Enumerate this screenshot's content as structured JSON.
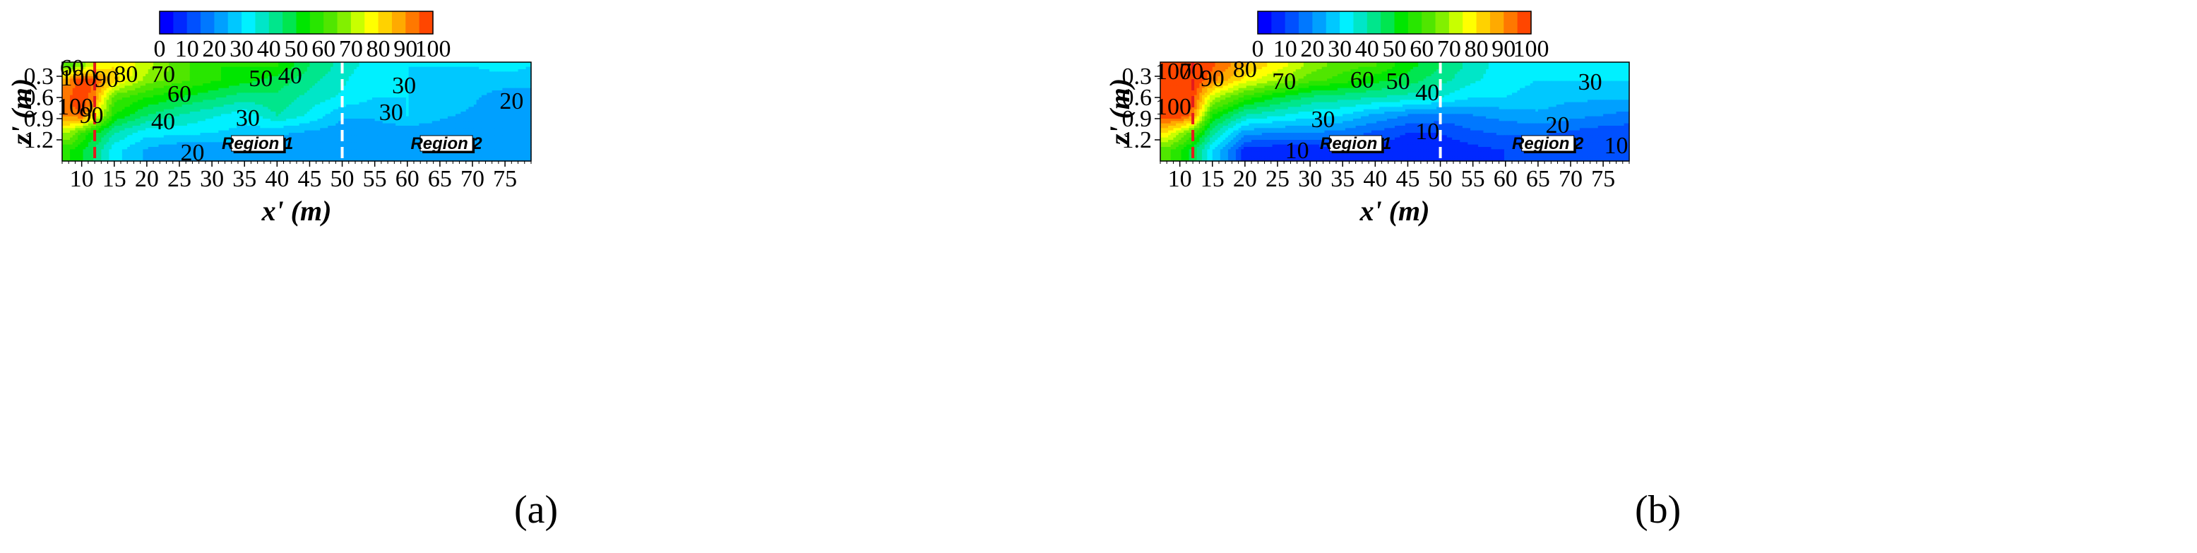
{
  "chart_data": [
    {
      "type": "heatmap",
      "panel_label": "(a)",
      "xlabel": "x' (m)",
      "ylabel": "z' (m)",
      "xlim": [
        7,
        79
      ],
      "ylim": [
        1.5,
        0.1
      ],
      "x_ticks": [
        "10",
        "15",
        "20",
        "25",
        "30",
        "35",
        "40",
        "45",
        "50",
        "55",
        "60",
        "65",
        "70",
        "75"
      ],
      "y_ticks": [
        "0.3",
        "0.6",
        "0.9",
        "1.2"
      ],
      "colorbar": {
        "range": [
          0,
          100
        ],
        "step": 5,
        "tick_labels": [
          "0",
          "10",
          "20",
          "30",
          "40",
          "50",
          "60",
          "70",
          "80",
          "90",
          "100"
        ]
      },
      "reference_lines": [
        {
          "x": 12,
          "color": "#e41a1c",
          "style": "dashed"
        },
        {
          "x": 50,
          "color": "#ffffff",
          "style": "dashed"
        }
      ],
      "regions": [
        {
          "label": "Region 1",
          "x": 37,
          "z": 1.25
        },
        {
          "label": "Region 2",
          "x": 66,
          "z": 1.25
        }
      ],
      "contour_labels": [
        {
          "text": "60",
          "x": 8.5,
          "z": 0.18
        },
        {
          "text": "100",
          "x": 9.5,
          "z": 0.32
        },
        {
          "text": "90",
          "x": 13.8,
          "z": 0.34
        },
        {
          "text": "80",
          "x": 16.8,
          "z": 0.27
        },
        {
          "text": "70",
          "x": 22.5,
          "z": 0.27
        },
        {
          "text": "60",
          "x": 25,
          "z": 0.55
        },
        {
          "text": "50",
          "x": 37.5,
          "z": 0.33
        },
        {
          "text": "40",
          "x": 42,
          "z": 0.29
        },
        {
          "text": "30",
          "x": 59.5,
          "z": 0.43
        },
        {
          "text": "100",
          "x": 9,
          "z": 0.73
        },
        {
          "text": "90",
          "x": 11.5,
          "z": 0.85
        },
        {
          "text": "40",
          "x": 22.5,
          "z": 0.94
        },
        {
          "text": "30",
          "x": 35.5,
          "z": 0.89
        },
        {
          "text": "30",
          "x": 57.5,
          "z": 0.81
        },
        {
          "text": "20",
          "x": 27,
          "z": 1.38
        },
        {
          "text": "20",
          "x": 76,
          "z": 0.65
        }
      ],
      "field_samples_z": [
        0.15,
        0.35,
        0.6,
        0.85,
        1.1,
        1.35
      ],
      "field_samples_x": [
        8,
        10,
        12,
        15,
        20,
        25,
        30,
        35,
        40,
        45,
        50,
        55,
        60,
        65,
        70,
        75,
        79
      ],
      "field_values": [
        [
          62,
          68,
          75,
          80,
          72,
          62,
          55,
          55,
          55,
          45,
          38,
          32,
          30,
          30,
          30,
          32,
          30
        ],
        [
          88,
          100,
          95,
          82,
          68,
          62,
          56,
          52,
          48,
          42,
          36,
          30,
          30,
          28,
          28,
          28,
          28
        ],
        [
          95,
          100,
          90,
          62,
          55,
          50,
          46,
          42,
          44,
          38,
          34,
          30,
          30,
          28,
          26,
          22,
          22
        ],
        [
          92,
          95,
          80,
          55,
          45,
          40,
          36,
          32,
          40,
          34,
          26,
          26,
          30,
          26,
          24,
          20,
          20
        ],
        [
          70,
          60,
          52,
          40,
          32,
          32,
          30,
          28,
          26,
          24,
          22,
          22,
          22,
          22,
          20,
          20,
          20
        ],
        [
          56,
          50,
          44,
          32,
          24,
          20,
          20,
          22,
          22,
          22,
          22,
          22,
          20,
          20,
          20,
          20,
          20
        ]
      ]
    },
    {
      "type": "heatmap",
      "panel_label": "(b)",
      "xlabel": "x' (m)",
      "ylabel": "z' (m)",
      "xlim": [
        7,
        79
      ],
      "ylim": [
        1.5,
        0.1
      ],
      "x_ticks": [
        "10",
        "15",
        "20",
        "25",
        "30",
        "35",
        "40",
        "45",
        "50",
        "55",
        "60",
        "65",
        "70",
        "75"
      ],
      "y_ticks": [
        "0.3",
        "0.6",
        "0.9",
        "1.2"
      ],
      "colorbar": {
        "range": [
          0,
          100
        ],
        "step": 5,
        "tick_labels": [
          "0",
          "10",
          "20",
          "30",
          "40",
          "50",
          "60",
          "70",
          "80",
          "90",
          "100"
        ]
      },
      "reference_lines": [
        {
          "x": 12,
          "color": "#e41a1c",
          "style": "dashed"
        },
        {
          "x": 50,
          "color": "#ffffff",
          "style": "dashed"
        }
      ],
      "regions": [
        {
          "label": "Region 1",
          "x": 37,
          "z": 1.25
        },
        {
          "label": "Region 2",
          "x": 66.5,
          "z": 1.25
        }
      ],
      "contour_labels": [
        {
          "text": "100",
          "x": 9,
          "z": 0.23
        },
        {
          "text": "70",
          "x": 11.8,
          "z": 0.23
        },
        {
          "text": "80",
          "x": 20,
          "z": 0.2
        },
        {
          "text": "90",
          "x": 15,
          "z": 0.33
        },
        {
          "text": "70",
          "x": 26,
          "z": 0.37
        },
        {
          "text": "60",
          "x": 38,
          "z": 0.35
        },
        {
          "text": "50",
          "x": 43.5,
          "z": 0.37
        },
        {
          "text": "40",
          "x": 48,
          "z": 0.53
        },
        {
          "text": "30",
          "x": 73,
          "z": 0.38
        },
        {
          "text": "100",
          "x": 9,
          "z": 0.73
        },
        {
          "text": "30",
          "x": 32,
          "z": 0.91
        },
        {
          "text": "20",
          "x": 68,
          "z": 0.99
        },
        {
          "text": "10",
          "x": 48,
          "z": 1.08
        },
        {
          "text": "10",
          "x": 28,
          "z": 1.35
        },
        {
          "text": "10",
          "x": 77,
          "z": 1.28
        }
      ],
      "field_samples_z": [
        0.15,
        0.35,
        0.6,
        0.85,
        1.1,
        1.35
      ],
      "field_samples_x": [
        8,
        10,
        12,
        15,
        20,
        25,
        30,
        35,
        40,
        45,
        50,
        55,
        60,
        65,
        70,
        75,
        79
      ],
      "field_values": [
        [
          100,
          100,
          100,
          96,
          85,
          78,
          68,
          62,
          60,
          52,
          45,
          38,
          32,
          30,
          30,
          30,
          30
        ],
        [
          100,
          100,
          100,
          92,
          78,
          70,
          62,
          58,
          52,
          48,
          42,
          36,
          32,
          30,
          30,
          30,
          30
        ],
        [
          100,
          100,
          98,
          72,
          58,
          50,
          44,
          42,
          40,
          38,
          35,
          30,
          30,
          28,
          26,
          26,
          26
        ],
        [
          98,
          100,
          92,
          55,
          40,
          36,
          32,
          30,
          24,
          20,
          18,
          20,
          22,
          24,
          22,
          20,
          18
        ],
        [
          80,
          70,
          62,
          42,
          22,
          20,
          20,
          18,
          14,
          10,
          10,
          14,
          16,
          16,
          14,
          12,
          12
        ],
        [
          62,
          56,
          48,
          30,
          8,
          6,
          6,
          8,
          8,
          6,
          6,
          8,
          10,
          10,
          10,
          10,
          10
        ]
      ]
    }
  ]
}
